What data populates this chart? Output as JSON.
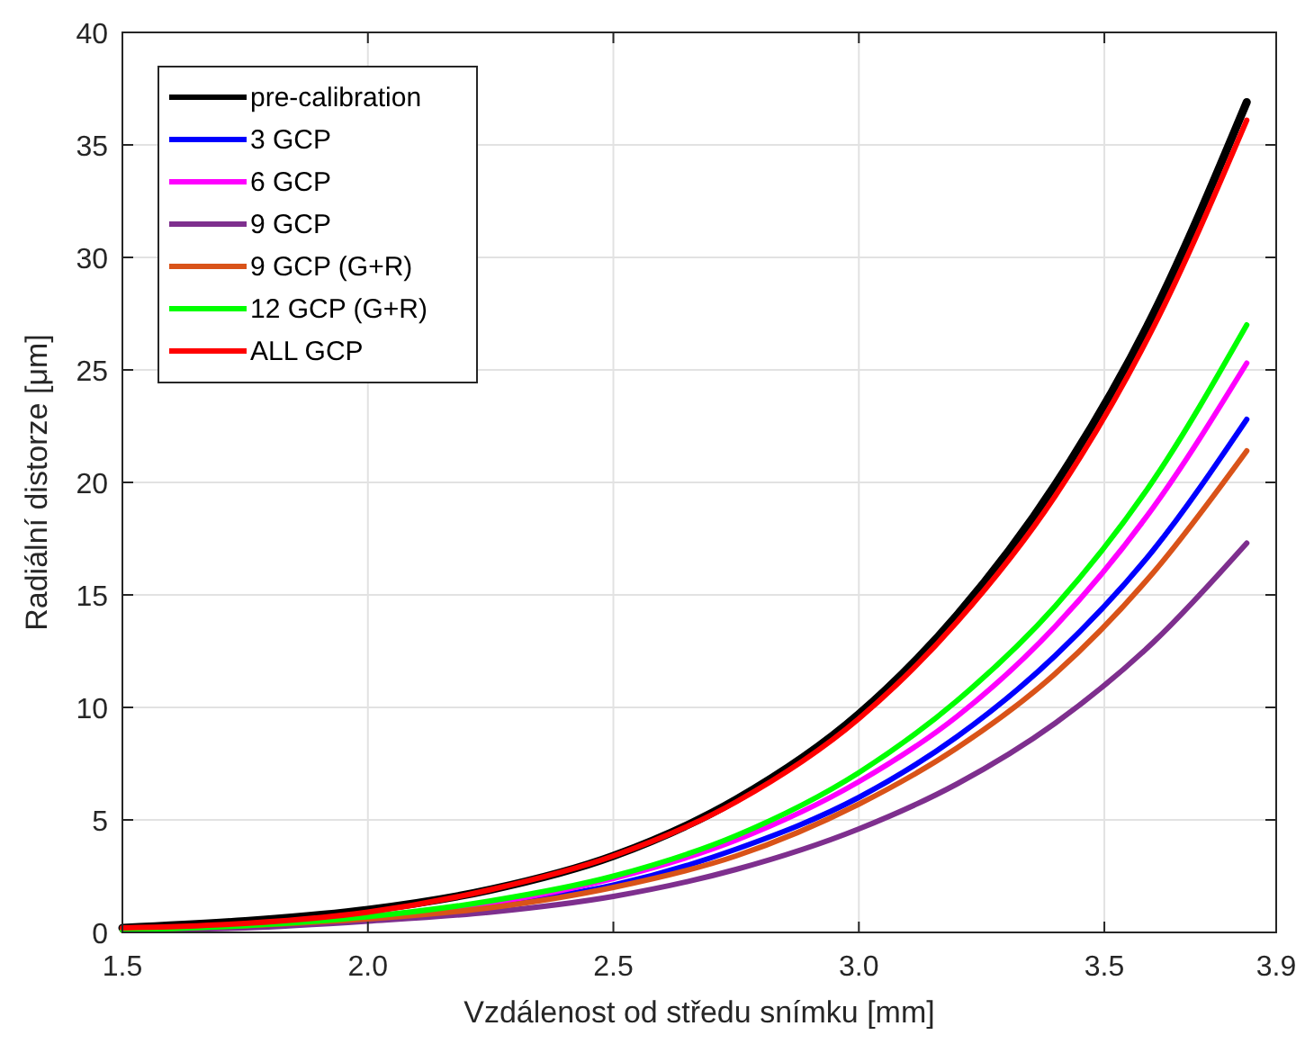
{
  "chart_data": {
    "type": "line",
    "xlabel": "Vzdálenost od středu snímku [mm]",
    "ylabel": "Radiální distorze [μm]",
    "x": [
      1.5,
      1.75,
      2.0,
      2.25,
      2.5,
      2.75,
      3.0,
      3.2,
      3.4,
      3.6,
      3.79
    ],
    "xlim": [
      1.5,
      3.85
    ],
    "xticks": [
      1.5,
      {
        "value": 2,
        "label": "2.0"
      },
      2.5,
      {
        "value": 3,
        "label": "3.0"
      },
      3.5,
      {
        "value": 3.85,
        "label": "3.9"
      }
    ],
    "ylim": [
      0,
      40
    ],
    "yticks": [
      0,
      5,
      10,
      15,
      20,
      25,
      30,
      35,
      40
    ],
    "grid": true,
    "legend": "top left",
    "line_style": "solid",
    "marker": "none",
    "series": [
      {
        "name": "pre-calibration",
        "color": "#000000",
        "values": [
          0.2,
          0.5,
          1.0,
          1.9,
          3.4,
          5.9,
          9.7,
          14.1,
          19.9,
          27.5,
          36.9
        ]
      },
      {
        "name": "3 GCP",
        "color": "#0000ff",
        "values": [
          null,
          null,
          0.6,
          1.2,
          2.1,
          3.7,
          6.0,
          8.7,
          12.3,
          17.0,
          22.8
        ]
      },
      {
        "name": "6 GCP",
        "color": "#ff00ff",
        "values": [
          null,
          null,
          0.7,
          1.3,
          2.4,
          4.1,
          6.7,
          9.6,
          13.6,
          18.9,
          25.3
        ]
      },
      {
        "name": "9 GCP",
        "color": "#7e2f8e",
        "values": [
          0.1,
          0.2,
          0.5,
          0.9,
          1.6,
          2.8,
          4.6,
          6.6,
          9.3,
          12.9,
          17.3
        ]
      },
      {
        "name": "9 GCP (G+R)",
        "color": "#d95319",
        "values": [
          0.1,
          0.3,
          0.6,
          1.1,
          2.0,
          3.4,
          5.7,
          8.2,
          11.5,
          16.0,
          21.4
        ]
      },
      {
        "name": "12 GCP (G+R)",
        "color": "#00ff00",
        "values": [
          0.1,
          0.3,
          0.7,
          1.4,
          2.5,
          4.3,
          7.1,
          10.3,
          14.5,
          20.1,
          27.0
        ]
      },
      {
        "name": "ALL GCP",
        "color": "#ff0000",
        "values": [
          0.2,
          0.4,
          0.9,
          1.9,
          3.4,
          5.8,
          9.5,
          13.8,
          19.4,
          26.9,
          36.1
        ]
      }
    ]
  }
}
